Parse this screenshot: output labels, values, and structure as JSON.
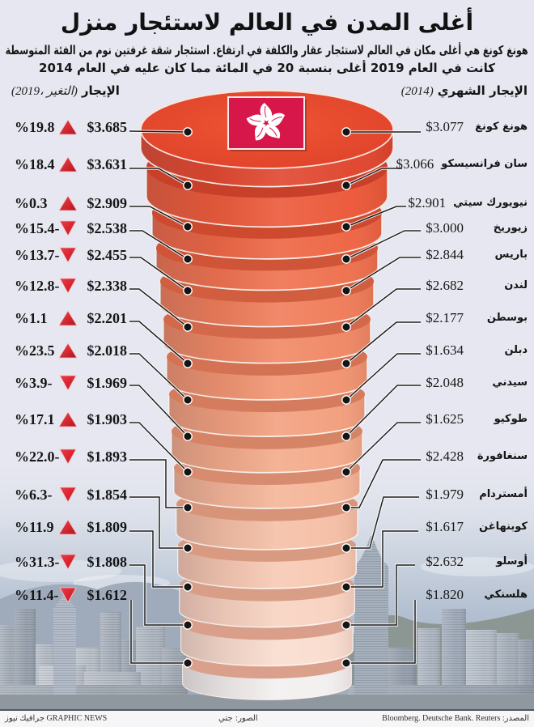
{
  "title": "أغلى المدن في العالم لاستئجار منزل",
  "subtitle": {
    "line1": "هونغ كونغ هي أغلى مكان في العالم لاستئجار عقار والكلفة في ارتفاع. استئجار شقة غرفتين نوم من الفئة المتوسطة",
    "line2": "كانت في العام 2019 أغلى بنسبة 20 في المائة مما كان عليه في العام 2014"
  },
  "left_header": {
    "label": "الإيجار",
    "note": "(2019، التغير)"
  },
  "right_header": {
    "label": "الإيجار الشهري",
    "note": "(2014)"
  },
  "rows": [
    {
      "city": "هونغ كونغ",
      "rent_2014": "$3.077",
      "rent_2019": "$3.685",
      "change": "%19.8",
      "trend": "up"
    },
    {
      "city": "سان فرانسيسكو",
      "rent_2014": "$3.066",
      "rent_2019": "$3.631",
      "change": "%18.4",
      "trend": "up"
    },
    {
      "city": "نيويورك سيتي",
      "rent_2014": "$2.901",
      "rent_2019": "$2.909",
      "change": "%0.3",
      "trend": "up"
    },
    {
      "city": "زيوريخ",
      "rent_2014": "$3.000",
      "rent_2019": "$2.538",
      "change": "%15.4-",
      "trend": "down"
    },
    {
      "city": "باريس",
      "rent_2014": "$2.844",
      "rent_2019": "$2.455",
      "change": "%13.7-",
      "trend": "down"
    },
    {
      "city": "لندن",
      "rent_2014": "$2.682",
      "rent_2019": "$2.338",
      "change": "%12.8-",
      "trend": "down"
    },
    {
      "city": "بوسطن",
      "rent_2014": "$2.177",
      "rent_2019": "$2.201",
      "change": "%1.1",
      "trend": "up"
    },
    {
      "city": "دبلن",
      "rent_2014": "$1.634",
      "rent_2019": "$2.018",
      "change": "%23.5",
      "trend": "up"
    },
    {
      "city": "سيدني",
      "rent_2014": "$2.048",
      "rent_2019": "$1.969",
      "change": "%3.9-",
      "trend": "down"
    },
    {
      "city": "طوكيو",
      "rent_2014": "$1.625",
      "rent_2019": "$1.903",
      "change": "%17.1",
      "trend": "up"
    },
    {
      "city": "سنغافورة",
      "rent_2014": "$2.428",
      "rent_2019": "$1.893",
      "change": "%22.0-",
      "trend": "down"
    },
    {
      "city": "أمستردام",
      "rent_2014": "$1.979",
      "rent_2019": "$1.854",
      "change": "%6.3-",
      "trend": "down"
    },
    {
      "city": "كوبنهاغن",
      "rent_2014": "$1.617",
      "rent_2019": "$1.809",
      "change": "%11.9",
      "trend": "up"
    },
    {
      "city": "أوسلو",
      "rent_2014": "$2.632",
      "rent_2019": "$1.808",
      "change": "%31.3-",
      "trend": "down"
    },
    {
      "city": "هلسنكي",
      "rent_2014": "$1.820",
      "rent_2019": "$1.612",
      "change": "%11.4-",
      "trend": "down"
    }
  ],
  "flag": {
    "icon": "hong-kong-flag-icon",
    "color": "#d7164a",
    "emblem_color": "#ffffff"
  },
  "icons": {
    "up": "triangle-up-icon",
    "down": "triangle-down-icon",
    "color": "#d91f2b"
  },
  "colors": {
    "background": "#e6e7f0",
    "leader_line": "#1e1e1e",
    "hk_top_face": "#e8492d",
    "disc_faces": [
      "#e8492d",
      "#c9402a",
      "#ce4a2f",
      "#d05437",
      "#d25e40",
      "#d3684a",
      "#d47254",
      "#d57c5e",
      "#d68466",
      "#d78c70",
      "#d89478",
      "#d89a80",
      "#d99e86",
      "#da9f8a",
      "#dba08c"
    ],
    "disc_bodies": [
      "#df4229",
      "#eb5535",
      "#ed6240",
      "#ee6e4b",
      "#ef7a56",
      "#f08662",
      "#f1926e",
      "#f29e7c",
      "#f3a988",
      "#f4b496",
      "#f5bea4",
      "#f7c8b2",
      "#f8d2c0",
      "#f9dcce",
      "#f2efef"
    ]
  },
  "footer": {
    "credit": "GRAPHIC NEWS جرافيك نيوز",
    "photos": "الصور: جتي",
    "source": "المصدر: Bloomberg. Deutsche Bank. Reuters"
  },
  "chart_data": {
    "type": "table",
    "title": "أغلى المدن في العالم لاستئجار منزل",
    "categories": [
      "هونغ كونغ",
      "سان فرانسيسكو",
      "نيويورك سيتي",
      "زيوريخ",
      "باريس",
      "لندن",
      "بوسطن",
      "دبلن",
      "سيدني",
      "طوكيو",
      "سنغافورة",
      "أمستردام",
      "كوبنهاغن",
      "أوسلو",
      "هلسنكي"
    ],
    "series": [
      {
        "name": "الإيجار الشهري (2014)",
        "unit": "$",
        "values": [
          3077,
          3066,
          2901,
          3000,
          2844,
          2682,
          2177,
          1634,
          2048,
          1625,
          2428,
          1979,
          1617,
          2632,
          1820
        ]
      },
      {
        "name": "الإيجار (2019)",
        "unit": "$",
        "values": [
          3685,
          3631,
          2909,
          2538,
          2455,
          2338,
          2201,
          2018,
          1969,
          1903,
          1893,
          1854,
          1809,
          1808,
          1612
        ]
      },
      {
        "name": "التغير (%)",
        "unit": "%",
        "values": [
          19.8,
          18.4,
          0.3,
          -15.4,
          -13.7,
          -12.8,
          1.1,
          23.5,
          -3.9,
          17.1,
          -22.0,
          -6.3,
          11.9,
          -31.3,
          -11.4
        ]
      }
    ],
    "layout": {
      "form": "stacked discs ranked by 2019 rent, top to bottom",
      "left_column": "2019 rent + change",
      "right_column": "city + 2014 rent"
    }
  }
}
